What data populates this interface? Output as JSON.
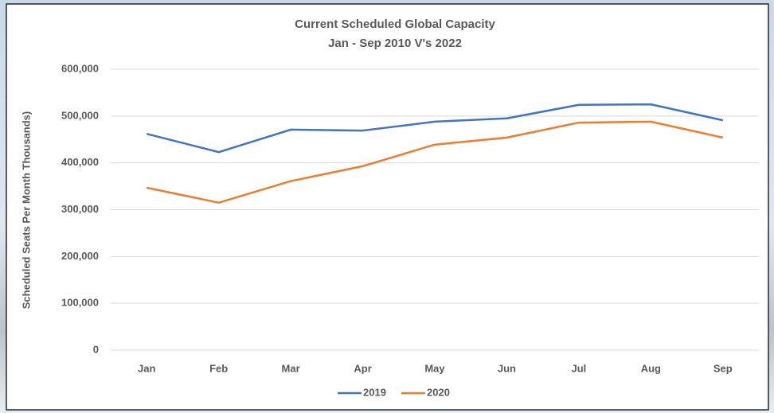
{
  "chart_data": {
    "type": "line",
    "title": "Current Scheduled Global Capacity",
    "subtitle": "Jan - Sep 2010 V's 2022",
    "y_label": "Scheduled Seats Per Month Thousands)",
    "categories": [
      "Jan",
      "Feb",
      "Mar",
      "Apr",
      "May",
      "Jun",
      "Jul",
      "Aug",
      "Sep"
    ],
    "series": [
      {
        "name": "2019",
        "color": "#4472c4",
        "values": [
          462000,
          423000,
          471000,
          469000,
          488000,
          495000,
          524000,
          525000,
          491000
        ]
      },
      {
        "name": "2020",
        "color": "#ed7d31",
        "values": [
          347000,
          315000,
          361000,
          393000,
          439000,
          454000,
          486000,
          488000,
          454000
        ]
      }
    ],
    "ylim": [
      0,
      600000
    ],
    "yticks": [
      0,
      {
        "value": 100000,
        "label": "100,000"
      },
      {
        "value": 200000,
        "label": "200,000"
      },
      {
        "value": 300000,
        "label": "300,000"
      },
      {
        "value": 400000,
        "label": "400,000"
      },
      {
        "value": 500000,
        "label": "500,000"
      },
      {
        "value": 600000,
        "label": "600,000"
      }
    ],
    "grid": true,
    "legend": "bottom"
  }
}
